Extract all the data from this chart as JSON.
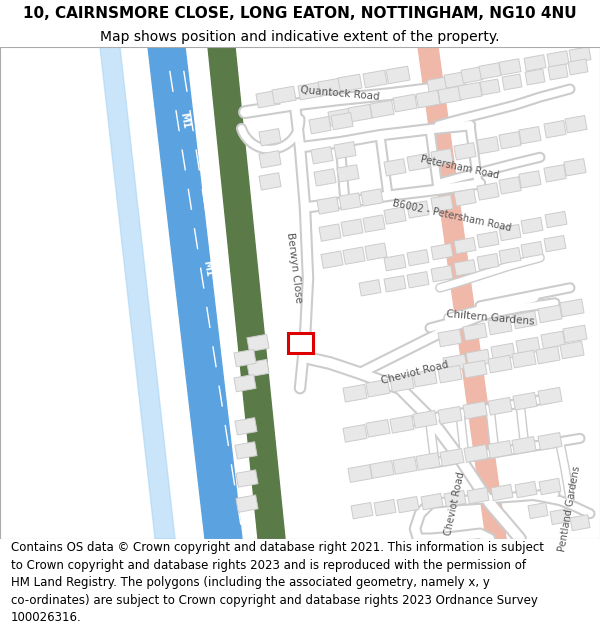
{
  "title": "10, CAIRNSMORE CLOSE, LONG EATON, NOTTINGHAM, NG10 4NU",
  "subtitle": "Map shows position and indicative extent of the property.",
  "footer": "Contains OS data © Crown copyright and database right 2021. This information is subject to Crown copyright and database rights 2023 and is reproduced with the permission of HM Land Registry. The polygons (including the associated geometry, namely x, y co-ordinates) are subject to Crown copyright and database rights 2023 Ordnance Survey 100026316.",
  "bg_color": "#ffffff",
  "map_bg": "#ffffff",
  "motorway_blue": "#5ba3e0",
  "motorway_light_blue": "#a8d4f5",
  "greenway_color": "#5a7a47",
  "salmon_road_color": "#f0b8a8",
  "building_fill": "#e8e8e8",
  "building_outline": "#cccccc",
  "road_fill": "#ffffff",
  "road_outline": "#cccccc",
  "highlight_color": "#dd0000",
  "label_color": "#555555",
  "title_fontsize": 11,
  "subtitle_fontsize": 10,
  "footer_fontsize": 8.5,
  "label_fontsize": 7.5
}
